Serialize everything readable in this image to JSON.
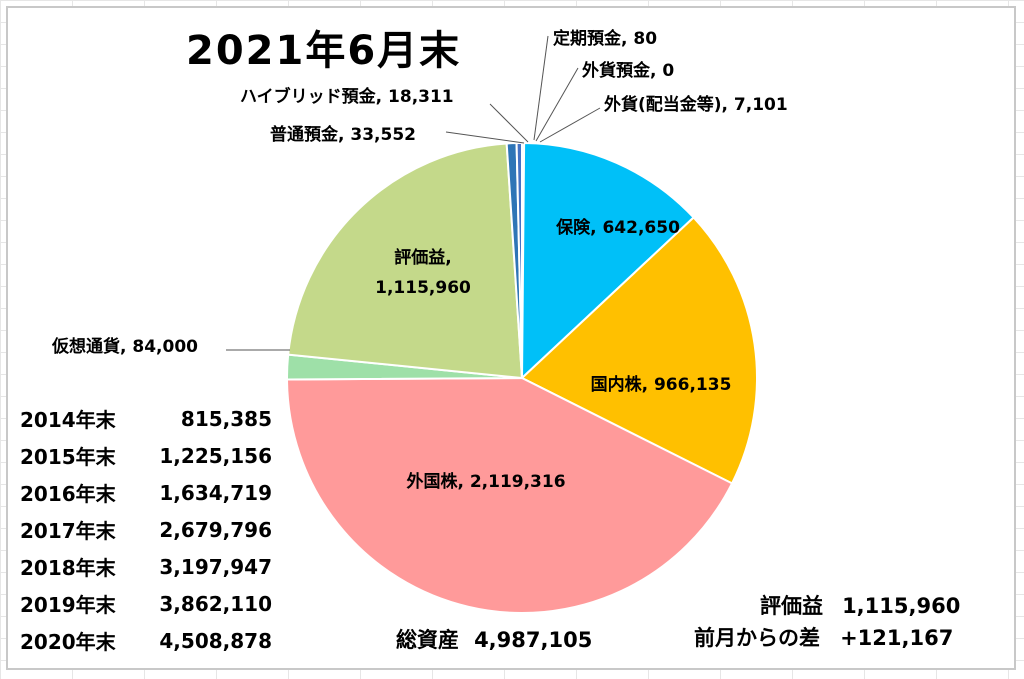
{
  "title": "2021年6月末",
  "chart_data": {
    "type": "pie",
    "slices": [
      {
        "label": "定期預金",
        "value": 80,
        "color": "#5b9bd5"
      },
      {
        "label": "外貨預金",
        "value": 0,
        "color": "#a5a5a5"
      },
      {
        "label": "外貨(配当金等)",
        "value": 7101,
        "color": "#70ad47"
      },
      {
        "label": "保険",
        "value": 642650,
        "color": "#00c0f8"
      },
      {
        "label": "国内株",
        "value": 966135,
        "color": "#ffc000"
      },
      {
        "label": "外国株",
        "value": 2119316,
        "color": "#ff9a9a"
      },
      {
        "label": "仮想通貨",
        "value": 84000,
        "color": "#9ee0a8"
      },
      {
        "label": "評価益",
        "value": 1115960,
        "color": "#c4d98a"
      },
      {
        "label": "普通預金",
        "value": 33552,
        "color": "#2e75b6"
      },
      {
        "label": "ハイブリッド預金",
        "value": 18311,
        "color": "#4472c4"
      }
    ],
    "data_labels": [
      {
        "label": "定期預金",
        "text": "80"
      },
      {
        "label": "外貨預金",
        "text": "0"
      },
      {
        "label": "外貨(配当金等)",
        "text": "7,101"
      },
      {
        "label": "保険",
        "text": "642,650"
      },
      {
        "label": "国内株",
        "text": "966,135"
      },
      {
        "label": "外国株",
        "text": "2,119,316"
      },
      {
        "label": "仮想通貨",
        "text": "84,000"
      },
      {
        "label": "評価益",
        "text": "1,115,960"
      },
      {
        "label": "普通預金",
        "text": "33,552"
      },
      {
        "label": "ハイブリッド預金",
        "text": "18,311"
      }
    ]
  },
  "history": [
    {
      "year": "2014年末",
      "value": "815,385"
    },
    {
      "year": "2015年末",
      "value": "1,225,156"
    },
    {
      "year": "2016年末",
      "value": "1,634,719"
    },
    {
      "year": "2017年末",
      "value": "2,679,796"
    },
    {
      "year": "2018年末",
      "value": "3,197,947"
    },
    {
      "year": "2019年末",
      "value": "3,862,110"
    },
    {
      "year": "2020年末",
      "value": "4,508,878"
    }
  ],
  "total": {
    "label": "総資産",
    "value": "4,987,105"
  },
  "gain": {
    "label": "評価益",
    "value": "1,115,960"
  },
  "diff": {
    "label": "前月からの差",
    "value": "+121,167"
  }
}
